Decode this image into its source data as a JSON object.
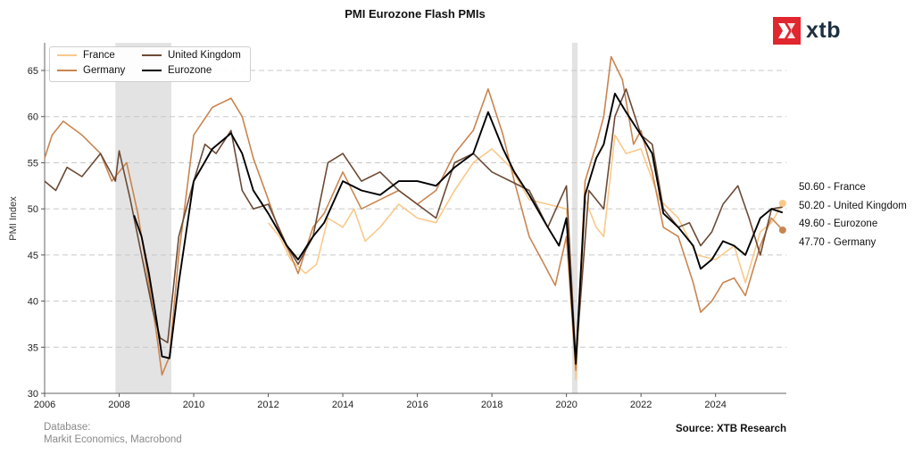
{
  "chart_data": {
    "type": "line",
    "title": "PMI Eurozone Flash PMIs",
    "ylabel": "PMI Index",
    "xlabel": "",
    "xlim": [
      2006,
      2025.9
    ],
    "ylim": [
      30,
      68
    ],
    "x_ticks": [
      2006,
      2008,
      2010,
      2012,
      2014,
      2016,
      2018,
      2020,
      2022,
      2024
    ],
    "x_tick_labels": [
      "2006",
      "2008",
      "2010",
      "2012",
      "2014",
      "2016",
      "2018",
      "2020",
      "2022",
      "2024"
    ],
    "y_ticks": [
      30,
      35,
      40,
      45,
      50,
      55,
      60,
      65
    ],
    "y_tick_labels": [
      "30",
      "35",
      "40",
      "45",
      "50",
      "55",
      "60",
      "65"
    ],
    "grid": "horizontal dashed",
    "legend_position": "top-left",
    "recession_bands": [
      [
        2007.9,
        2009.4
      ],
      [
        2020.15,
        2020.3
      ]
    ],
    "series": [
      {
        "name": "France",
        "color": "#f9c98a",
        "points": [
          [
            2012.0,
            48.5
          ],
          [
            2012.3,
            47.0
          ],
          [
            2012.6,
            44.5
          ],
          [
            2013.0,
            43.0
          ],
          [
            2013.3,
            44.0
          ],
          [
            2013.6,
            49.0
          ],
          [
            2014.0,
            48.0
          ],
          [
            2014.3,
            50.0
          ],
          [
            2014.6,
            46.5
          ],
          [
            2015.0,
            48.0
          ],
          [
            2015.5,
            50.5
          ],
          [
            2016.0,
            49.0
          ],
          [
            2016.5,
            48.5
          ],
          [
            2017.0,
            52.0
          ],
          [
            2017.5,
            55.0
          ],
          [
            2018.0,
            56.5
          ],
          [
            2018.5,
            54.5
          ],
          [
            2019.0,
            51.0
          ],
          [
            2019.5,
            50.5
          ],
          [
            2020.0,
            50.0
          ],
          [
            2020.25,
            31.5
          ],
          [
            2020.5,
            51.0
          ],
          [
            2020.8,
            48.0
          ],
          [
            2021.0,
            47.0
          ],
          [
            2021.3,
            58.0
          ],
          [
            2021.6,
            56.0
          ],
          [
            2022.0,
            56.5
          ],
          [
            2022.5,
            51.0
          ],
          [
            2023.0,
            49.0
          ],
          [
            2023.5,
            45.0
          ],
          [
            2024.0,
            44.5
          ],
          [
            2024.5,
            46.0
          ],
          [
            2024.8,
            42.0
          ],
          [
            2025.2,
            47.5
          ],
          [
            2025.5,
            48.5
          ],
          [
            2025.8,
            50.6
          ]
        ]
      },
      {
        "name": "Germany",
        "color": "#c98550",
        "points": [
          [
            2006.0,
            55.5
          ],
          [
            2006.2,
            58.0
          ],
          [
            2006.5,
            59.5
          ],
          [
            2007.0,
            58.0
          ],
          [
            2007.5,
            56.0
          ],
          [
            2007.8,
            53.0
          ],
          [
            2008.0,
            54.0
          ],
          [
            2008.2,
            55.0
          ],
          [
            2008.5,
            49.5
          ],
          [
            2008.8,
            42.0
          ],
          [
            2009.0,
            36.5
          ],
          [
            2009.15,
            32.0
          ],
          [
            2009.35,
            34.0
          ],
          [
            2009.6,
            45.0
          ],
          [
            2010.0,
            58.0
          ],
          [
            2010.5,
            61.0
          ],
          [
            2011.0,
            62.0
          ],
          [
            2011.3,
            60.0
          ],
          [
            2011.6,
            55.5
          ],
          [
            2012.0,
            51.0
          ],
          [
            2012.3,
            47.5
          ],
          [
            2012.6,
            45.0
          ],
          [
            2012.8,
            43.0
          ],
          [
            2013.2,
            48.0
          ],
          [
            2013.5,
            49.5
          ],
          [
            2014.0,
            54.0
          ],
          [
            2014.5,
            50.0
          ],
          [
            2015.0,
            51.0
          ],
          [
            2015.5,
            52.0
          ],
          [
            2016.0,
            50.5
          ],
          [
            2016.5,
            52.0
          ],
          [
            2017.0,
            56.0
          ],
          [
            2017.5,
            58.5
          ],
          [
            2017.9,
            63.0
          ],
          [
            2018.3,
            58.0
          ],
          [
            2018.6,
            53.0
          ],
          [
            2019.0,
            47.0
          ],
          [
            2019.4,
            44.0
          ],
          [
            2019.7,
            41.7
          ],
          [
            2020.0,
            47.0
          ],
          [
            2020.25,
            32.5
          ],
          [
            2020.5,
            53.0
          ],
          [
            2020.8,
            57.0
          ],
          [
            2021.0,
            60.0
          ],
          [
            2021.2,
            66.5
          ],
          [
            2021.5,
            64.0
          ],
          [
            2021.8,
            57.0
          ],
          [
            2022.0,
            58.5
          ],
          [
            2022.3,
            54.0
          ],
          [
            2022.6,
            48.0
          ],
          [
            2023.0,
            47.0
          ],
          [
            2023.4,
            42.0
          ],
          [
            2023.6,
            38.8
          ],
          [
            2023.9,
            40.0
          ],
          [
            2024.2,
            42.0
          ],
          [
            2024.5,
            42.5
          ],
          [
            2024.8,
            40.6
          ],
          [
            2025.2,
            46.0
          ],
          [
            2025.5,
            49.0
          ],
          [
            2025.8,
            47.7
          ]
        ]
      },
      {
        "name": "United Kingdom",
        "color": "#6b4a35",
        "points": [
          [
            2006.0,
            53.0
          ],
          [
            2006.3,
            52.0
          ],
          [
            2006.6,
            54.5
          ],
          [
            2007.0,
            53.5
          ],
          [
            2007.5,
            56.0
          ],
          [
            2007.9,
            53.0
          ],
          [
            2008.0,
            56.3
          ],
          [
            2008.3,
            51.0
          ],
          [
            2008.6,
            45.0
          ],
          [
            2008.9,
            39.0
          ],
          [
            2009.1,
            36.0
          ],
          [
            2009.3,
            35.5
          ],
          [
            2009.6,
            47.0
          ],
          [
            2010.0,
            53.0
          ],
          [
            2010.3,
            57.0
          ],
          [
            2010.6,
            56.0
          ],
          [
            2011.0,
            58.5
          ],
          [
            2011.3,
            52.0
          ],
          [
            2011.6,
            50.0
          ],
          [
            2012.0,
            50.5
          ],
          [
            2012.5,
            46.0
          ],
          [
            2012.8,
            44.0
          ],
          [
            2013.2,
            47.0
          ],
          [
            2013.6,
            55.0
          ],
          [
            2014.0,
            56.0
          ],
          [
            2014.5,
            53.0
          ],
          [
            2015.0,
            54.0
          ],
          [
            2015.5,
            52.0
          ],
          [
            2016.0,
            50.5
          ],
          [
            2016.5,
            49.0
          ],
          [
            2017.0,
            55.0
          ],
          [
            2017.5,
            56.0
          ],
          [
            2018.0,
            54.0
          ],
          [
            2018.5,
            53.0
          ],
          [
            2019.0,
            52.0
          ],
          [
            2019.5,
            48.0
          ],
          [
            2020.0,
            52.5
          ],
          [
            2020.25,
            33.5
          ],
          [
            2020.6,
            52.0
          ],
          [
            2021.0,
            50.0
          ],
          [
            2021.3,
            60.0
          ],
          [
            2021.6,
            63.0
          ],
          [
            2022.0,
            58.0
          ],
          [
            2022.3,
            57.0
          ],
          [
            2022.6,
            50.0
          ],
          [
            2023.0,
            48.0
          ],
          [
            2023.3,
            48.5
          ],
          [
            2023.6,
            46.0
          ],
          [
            2023.9,
            47.5
          ],
          [
            2024.2,
            50.5
          ],
          [
            2024.6,
            52.5
          ],
          [
            2024.9,
            49.0
          ],
          [
            2025.2,
            45.0
          ],
          [
            2025.5,
            50.0
          ],
          [
            2025.8,
            50.2
          ]
        ]
      },
      {
        "name": "Eurozone",
        "color": "#000000",
        "points": [
          [
            2008.4,
            49.3
          ],
          [
            2008.6,
            47.0
          ],
          [
            2008.8,
            43.0
          ],
          [
            2009.0,
            38.0
          ],
          [
            2009.15,
            34.0
          ],
          [
            2009.35,
            33.8
          ],
          [
            2009.6,
            42.0
          ],
          [
            2010.0,
            53.0
          ],
          [
            2010.5,
            56.5
          ],
          [
            2011.0,
            58.2
          ],
          [
            2011.3,
            56.0
          ],
          [
            2011.6,
            52.0
          ],
          [
            2012.0,
            49.5
          ],
          [
            2012.5,
            46.0
          ],
          [
            2012.8,
            44.5
          ],
          [
            2013.2,
            47.0
          ],
          [
            2013.5,
            48.5
          ],
          [
            2014.0,
            53.0
          ],
          [
            2014.5,
            52.0
          ],
          [
            2015.0,
            51.5
          ],
          [
            2015.5,
            53.0
          ],
          [
            2016.0,
            53.0
          ],
          [
            2016.5,
            52.5
          ],
          [
            2017.0,
            54.5
          ],
          [
            2017.5,
            56.0
          ],
          [
            2017.9,
            60.5
          ],
          [
            2018.3,
            56.5
          ],
          [
            2018.6,
            54.0
          ],
          [
            2019.0,
            51.5
          ],
          [
            2019.5,
            48.0
          ],
          [
            2019.8,
            46.0
          ],
          [
            2020.0,
            49.0
          ],
          [
            2020.25,
            33.2
          ],
          [
            2020.5,
            51.5
          ],
          [
            2020.8,
            55.5
          ],
          [
            2021.0,
            57.0
          ],
          [
            2021.3,
            62.5
          ],
          [
            2021.6,
            60.5
          ],
          [
            2022.0,
            58.0
          ],
          [
            2022.3,
            56.0
          ],
          [
            2022.6,
            49.5
          ],
          [
            2023.0,
            48.0
          ],
          [
            2023.4,
            46.0
          ],
          [
            2023.6,
            43.5
          ],
          [
            2023.9,
            44.5
          ],
          [
            2024.2,
            46.5
          ],
          [
            2024.5,
            46.0
          ],
          [
            2024.8,
            45.0
          ],
          [
            2025.2,
            49.0
          ],
          [
            2025.5,
            50.0
          ],
          [
            2025.8,
            49.6
          ]
        ]
      }
    ],
    "end_labels": [
      "50.60 - France",
      "50.20 - United Kingdom",
      "49.60 - Eurozone",
      "47.70 - Germany"
    ],
    "end_values": [
      {
        "name": "France",
        "value": 50.6
      },
      {
        "name": "Germany",
        "value": 47.7
      }
    ]
  },
  "brand": {
    "logo_text": "xtb",
    "color": "#e0262e",
    "text_color": "#1e3040"
  },
  "footer": {
    "database_label": "Database:",
    "database_sources": "Markit Economics, Macrobond",
    "source": "Source: XTB Research"
  },
  "legend": {
    "items": [
      "France",
      "Germany",
      "United Kingdom",
      "Eurozone"
    ]
  }
}
